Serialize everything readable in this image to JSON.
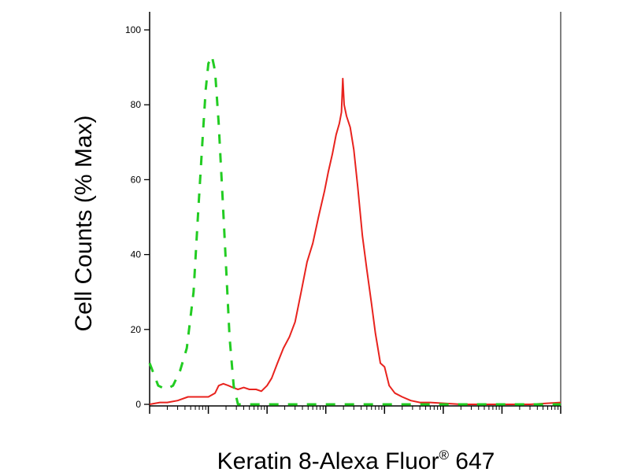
{
  "chart_data": {
    "type": "line",
    "title": "",
    "xlabel_main": "Keratin 8-Alexa Fluor",
    "xlabel_sup": "®",
    "xlabel_tail": " 647",
    "ylabel": "Cell Counts (% Max)",
    "x_scale": "log",
    "xlim": [
      1,
      10000000
    ],
    "ylim": [
      0,
      100
    ],
    "yticks": [
      0,
      20,
      40,
      60,
      80,
      100
    ],
    "ytick_labels": [
      "0",
      "20",
      "40",
      "60",
      "80",
      "100"
    ],
    "grid": false,
    "series": [
      {
        "color": "#e8231e",
        "style": "solid",
        "x": [
          1,
          1.5,
          2,
          3,
          4.5,
          6.5,
          10,
          13,
          15,
          18,
          22,
          26,
          32,
          40,
          50,
          65,
          80,
          100,
          120,
          150,
          190,
          240,
          300,
          380,
          480,
          600,
          750,
          950,
          1100,
          1300,
          1500,
          1700,
          1850,
          1950,
          2050,
          2250,
          2600,
          3000,
          3500,
          4200,
          5000,
          6000,
          7000,
          8500,
          10000,
          12000,
          15000,
          20000,
          28000,
          40000,
          60000,
          100000,
          200000,
          500000,
          1000000,
          3000000,
          10000000
        ],
        "y": [
          0,
          0.5,
          0.5,
          1,
          2,
          2,
          2,
          3,
          5,
          5.5,
          5,
          4.5,
          4,
          4.5,
          4,
          4,
          3.5,
          5,
          7,
          11,
          15,
          18,
          22,
          30,
          38,
          43,
          50,
          57,
          62,
          67,
          72,
          75,
          78,
          87,
          80,
          77,
          74,
          68,
          58,
          45,
          36,
          27,
          19,
          11,
          10,
          5,
          3,
          2,
          1,
          0.5,
          0.5,
          0.3,
          0,
          0,
          0,
          0,
          0.5
        ]
      },
      {
        "color": "#22cc22",
        "style": "dashed",
        "x": [
          1,
          1.4,
          1.9,
          2.5,
          3.3,
          4.3,
          5.6,
          6.8,
          8,
          9,
          10,
          11.5,
          13,
          15,
          17.5,
          20,
          23,
          27,
          32,
          40,
          55,
          80,
          150,
          500,
          5000,
          100000,
          10000000
        ],
        "y": [
          11,
          5,
          4,
          5,
          9,
          15,
          30,
          53,
          71,
          84,
          91,
          93,
          89,
          75,
          55,
          37,
          18,
          5,
          0,
          0,
          0,
          0,
          0,
          0,
          0,
          0,
          0
        ]
      }
    ]
  }
}
